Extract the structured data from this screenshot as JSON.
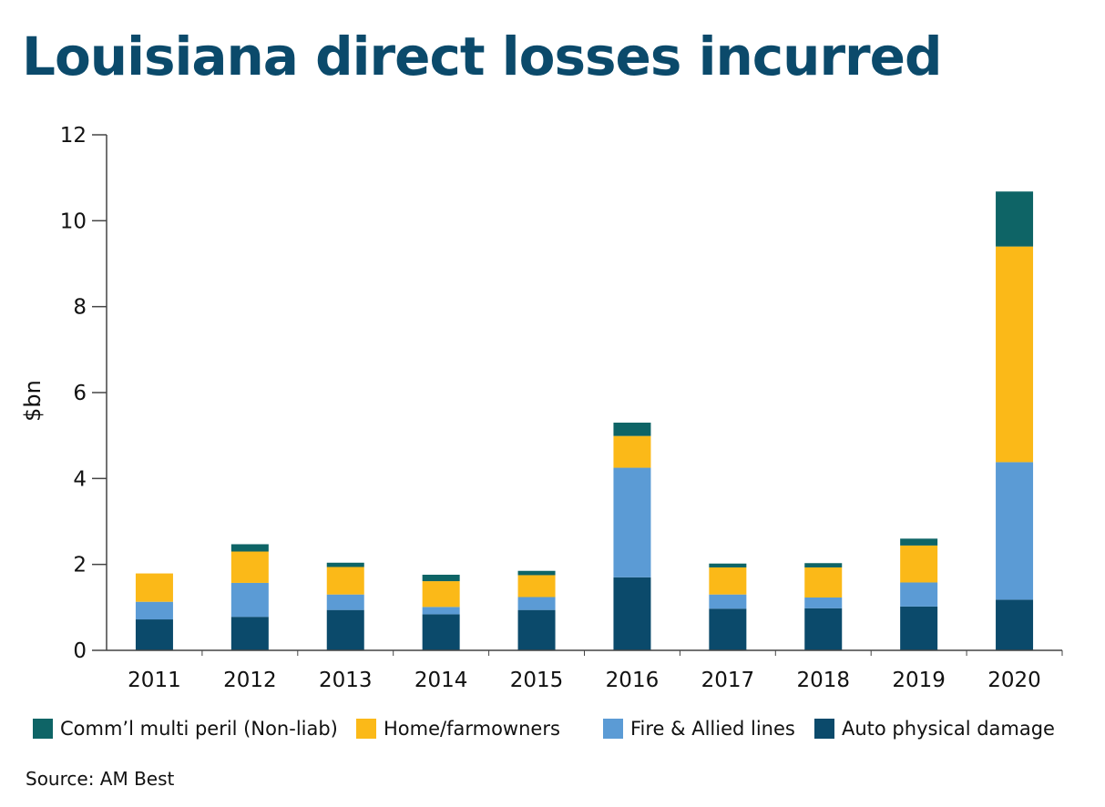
{
  "title": "Louisiana direct losses incurred",
  "source": "Source: AM Best",
  "colors": {
    "auto": "#0b4a6b",
    "fire": "#5b9bd5",
    "home": "#fbb918",
    "comm": "#0e6466",
    "axis": "#444444"
  },
  "legend": [
    {
      "label": "Comm’l multi peril (Non-liab)",
      "color": "#0e6466"
    },
    {
      "label": "Home/farmowners",
      "color": "#fbb918"
    },
    {
      "label": "Fire & Allied lines",
      "color": "#5b9bd5"
    },
    {
      "label": "Auto physical damage",
      "color": "#0b4a6b"
    }
  ],
  "chart_data": {
    "type": "bar",
    "stacked": true,
    "title": "Louisiana direct losses incurred",
    "xlabel": "",
    "ylabel": "$bn",
    "ylim": [
      0,
      12
    ],
    "yticks": [
      "0",
      "2",
      "4",
      "6",
      "8",
      "10",
      "12"
    ],
    "grid": false,
    "legend_position": "bottom",
    "categories": [
      "2011",
      "2012",
      "2013",
      "2014",
      "2015",
      "2016",
      "2017",
      "2018",
      "2019",
      "2020"
    ],
    "series": [
      {
        "name": "Auto physical damage",
        "color": "#0b4a6b",
        "values": [
          0.72,
          0.78,
          0.94,
          0.84,
          0.94,
          1.7,
          0.97,
          0.98,
          1.02,
          1.18
        ]
      },
      {
        "name": "Fire & Allied lines",
        "color": "#5b9bd5",
        "values": [
          0.41,
          0.79,
          0.36,
          0.17,
          0.3,
          2.55,
          0.33,
          0.25,
          0.56,
          3.2
        ]
      },
      {
        "name": "Home/farmowners",
        "color": "#fbb918",
        "values": [
          0.66,
          0.73,
          0.64,
          0.6,
          0.51,
          0.74,
          0.63,
          0.7,
          0.86,
          5.02
        ]
      },
      {
        "name": "Comm’l multi peril (Non-liab)",
        "color": "#0e6466",
        "values": [
          0.0,
          0.17,
          0.1,
          0.15,
          0.1,
          0.31,
          0.09,
          0.1,
          0.16,
          1.28
        ]
      }
    ]
  }
}
